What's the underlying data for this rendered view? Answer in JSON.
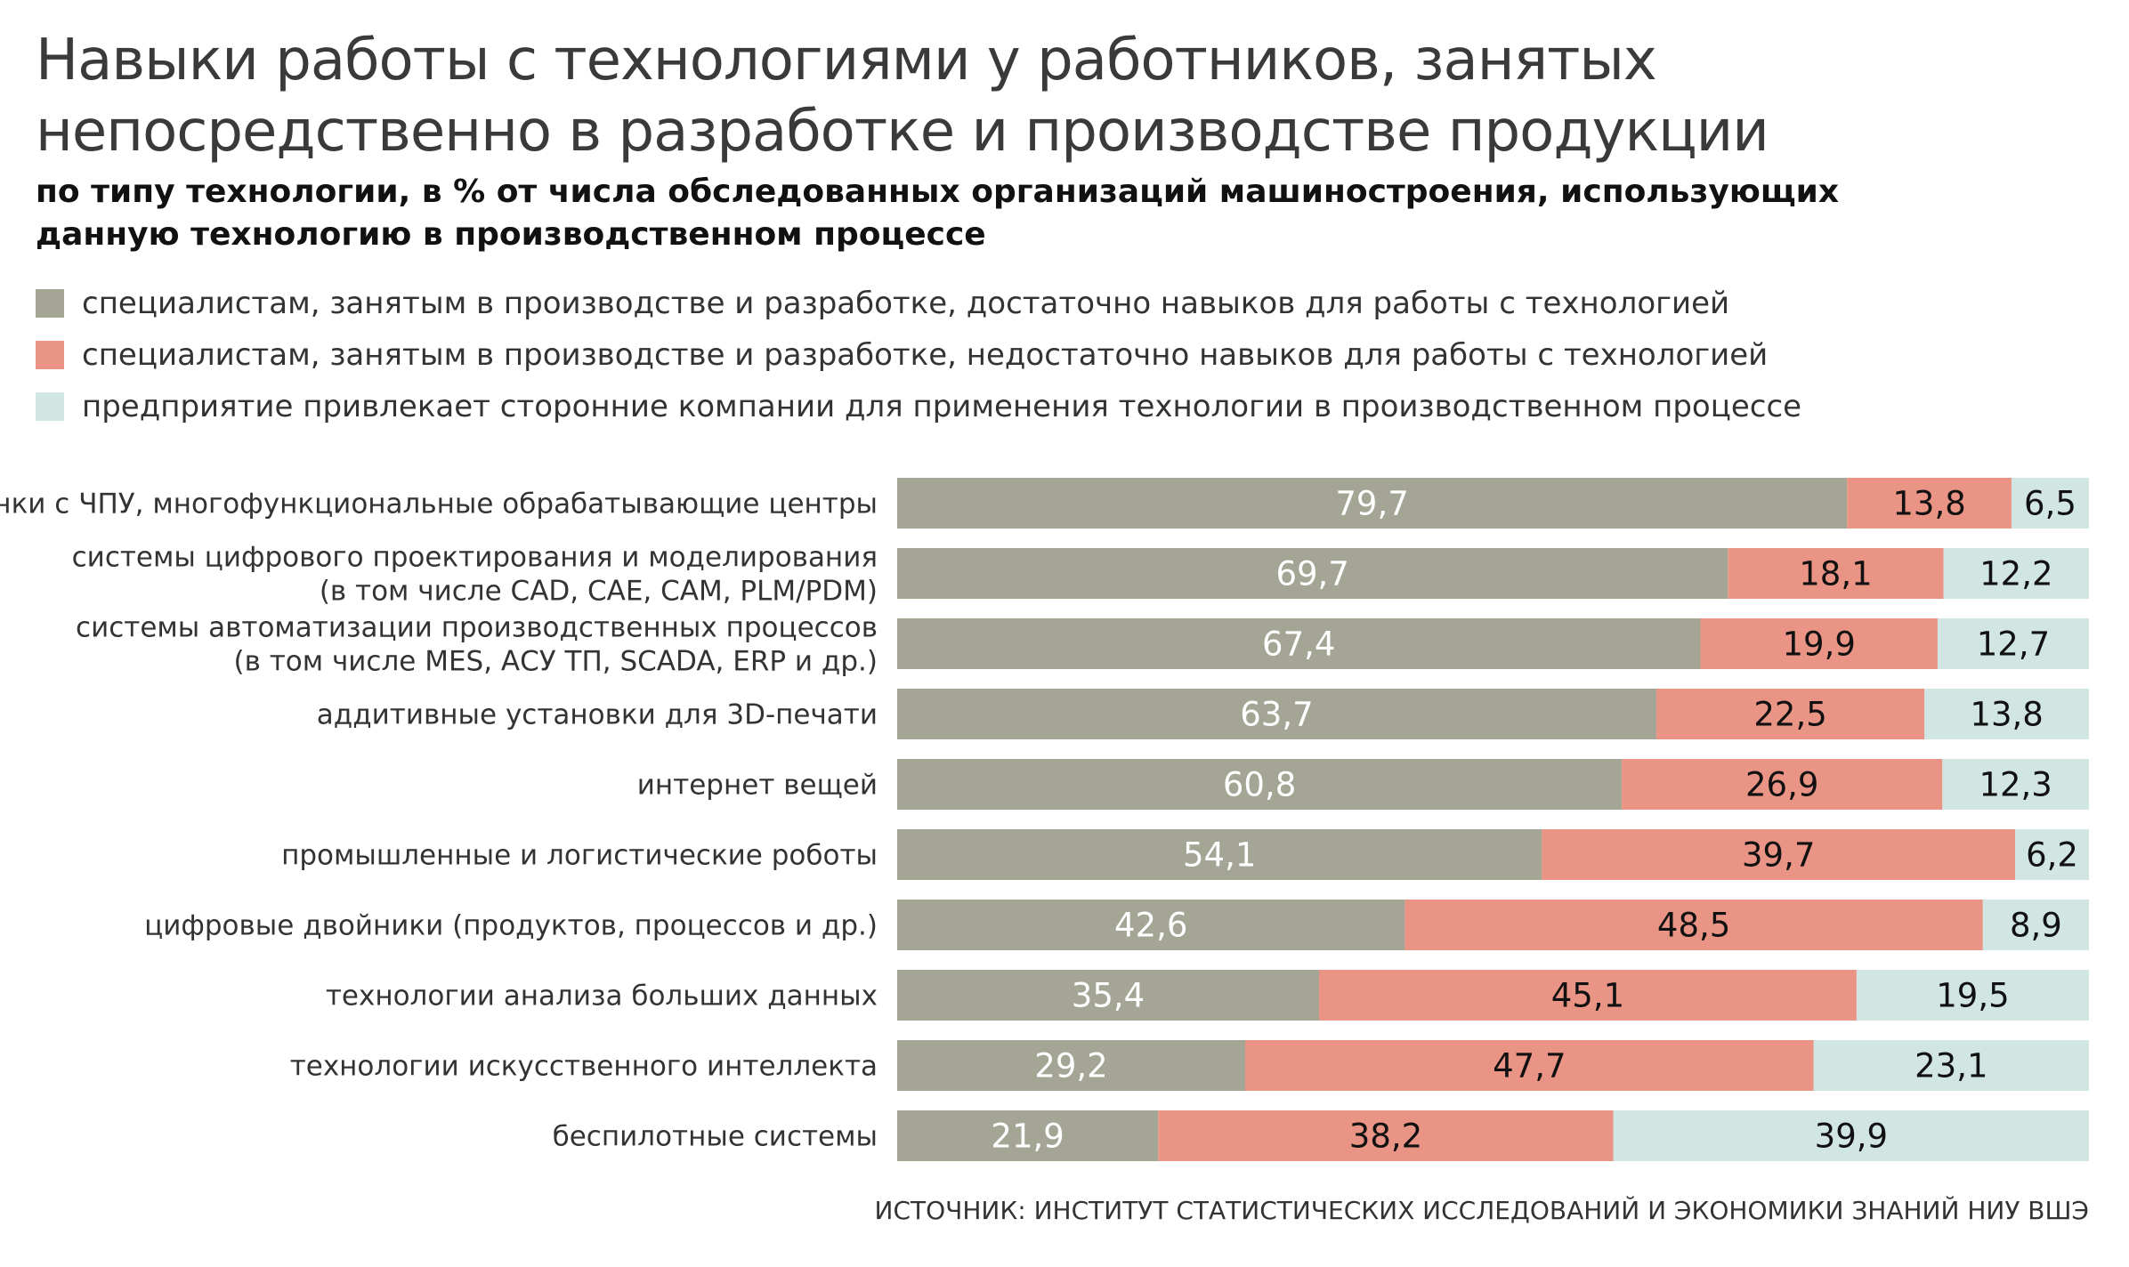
{
  "header": {
    "title": "Навыки работы с технологиями у работников, занятых непосредственно в разработке и производстве продукции",
    "subtitle": "по типу технологии, в % от числа обследованных организаций машиностроения, использующих данную технологию в производственном процессе"
  },
  "legend": [
    {
      "label": "специалистам, занятым в производстве и разработке, достаточно навыков для работы с технологией",
      "color": "#a5a596"
    },
    {
      "label": "специалистам, занятым в производстве и разработке, недостаточно навыков для работы с технологией",
      "color": "#e99484"
    },
    {
      "label": "предприятие привлекает сторонние компании для применения технологии в производственном процессе",
      "color": "#d1e5e3"
    }
  ],
  "chart_data": {
    "type": "bar",
    "orientation": "horizontal",
    "stacked": true,
    "categories": [
      [
        "станки с ЧПУ, многофункциональные обрабатывающие центры"
      ],
      [
        "системы цифрового проектирования и моделирования",
        "(в том числе CAD, CAE, CAM, PLM/PDM)"
      ],
      [
        "системы автоматизации производственных процессов",
        "(в том числе MES, АСУ ТП, SCADA, ERP и др.)"
      ],
      [
        "аддитивные установки для 3D-печати"
      ],
      [
        "интернет вещей"
      ],
      [
        "промышленные и логистические роботы"
      ],
      [
        "цифровые двойники (продуктов, процессов и др.)"
      ],
      [
        "технологии анализа больших данных"
      ],
      [
        "технологии искусственного интеллекта"
      ],
      [
        "беспилотные системы"
      ]
    ],
    "series": [
      {
        "color": "#a5a596",
        "label_color": "#ffffff",
        "values": [
          79.7,
          69.7,
          67.4,
          63.7,
          60.8,
          54.1,
          42.6,
          35.4,
          29.2,
          21.9
        ],
        "labels": [
          "79,7",
          "69,7",
          "67,4",
          "63,7",
          "60,8",
          "54,1",
          "42,6",
          "35,4",
          "29,2",
          "21,9"
        ]
      },
      {
        "color": "#e99484",
        "label_color": "#111111",
        "values": [
          13.8,
          18.1,
          19.9,
          22.5,
          26.9,
          39.7,
          48.5,
          45.1,
          47.7,
          38.2
        ],
        "labels": [
          "13,8",
          "18,1",
          "19,9",
          "22,5",
          "26,9",
          "39,7",
          "48,5",
          "45,1",
          "47,7",
          "38,2"
        ]
      },
      {
        "color": "#d1e5e3",
        "label_color": "#111111",
        "values": [
          6.5,
          12.2,
          12.7,
          13.8,
          12.3,
          6.2,
          8.9,
          19.5,
          23.1,
          39.9
        ],
        "labels": [
          "6,5",
          "12,2",
          "12,7",
          "13,8",
          "12,3",
          "6,2",
          "8,9",
          "19,5",
          "23,1",
          "39,9"
        ]
      }
    ],
    "xlim": [
      0,
      100
    ],
    "grid": false,
    "legend_position": "top"
  },
  "footer": {
    "source": "ИСТОЧНИК: ИНСТИТУТ СТАТИСТИЧЕСКИХ ИССЛЕДОВАНИЙ И ЭКОНОМИКИ ЗНАНИЙ НИУ ВШЭ"
  }
}
